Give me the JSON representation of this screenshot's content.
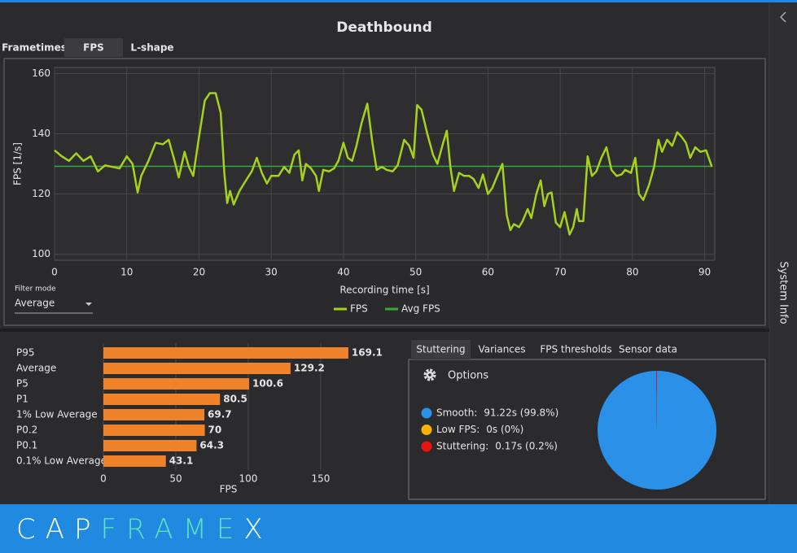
{
  "title": "Deathbound",
  "tabs": [
    "Frametimes",
    "FPS",
    "L-shape"
  ],
  "filter_mode": {
    "label": "Filter mode",
    "value": "Average"
  },
  "side_panel": "System Info",
  "analysis_tabs": [
    "Stuttering",
    "Variances",
    "FPS thresholds",
    "Sensor data"
  ],
  "options": "Options",
  "brand": [
    "CAP",
    "FRAME",
    "X"
  ],
  "chart_data": [
    {
      "type": "line",
      "xlabel": "Recording time [s]",
      "ylabel": "FPS [1/s]",
      "x": [
        0,
        1,
        2,
        3,
        4,
        5,
        6,
        7,
        8,
        9,
        10,
        10.8,
        11.5,
        12,
        13,
        14,
        15,
        15.8,
        16.5,
        17.2,
        18,
        18.6,
        19.2,
        20,
        20.8,
        21.5,
        22.3,
        23,
        23.5,
        23.9,
        24.3,
        24.8,
        25.6,
        26.5,
        27.3,
        28,
        28.7,
        29.4,
        30,
        31,
        31.8,
        32.5,
        33.2,
        33.8,
        34.3,
        34.8,
        35.5,
        36.2,
        36.6,
        37.2,
        38,
        38.7,
        39.3,
        40,
        40.6,
        41.2,
        41.8,
        42.5,
        43.3,
        44,
        44.6,
        45.3,
        46,
        46.8,
        47.5,
        48.4,
        49.1,
        49.7,
        50.2,
        50.8,
        51.6,
        52.4,
        53,
        53.8,
        54.3,
        54.8,
        55.3,
        56,
        56.7,
        57.4,
        58,
        58.7,
        59.3,
        60,
        60.6,
        61.2,
        62,
        62.6,
        63.1,
        63.6,
        64.3,
        64.8,
        65.5,
        66,
        66.7,
        67.3,
        67.8,
        68.3,
        68.8,
        69.4,
        70,
        70.6,
        71.3,
        71.8,
        72.3,
        72.6,
        73.2,
        73.8,
        74.4,
        75,
        75.7,
        76.4,
        77.1,
        77.8,
        78.5,
        79,
        79.8,
        80.4,
        80.9,
        81.5,
        82.3,
        83,
        83.6,
        84.1,
        84.8,
        85.5,
        86.2,
        86.8,
        87.4,
        88,
        88.7,
        89.4,
        90.2,
        91
      ],
      "series": [
        {
          "name": "FPS",
          "color": "#a6d11c",
          "values": [
            134.5,
            132.5,
            131,
            133.5,
            131,
            132.5,
            127.5,
            129.5,
            129,
            128.5,
            132.5,
            130,
            120.5,
            126,
            131,
            137,
            136.5,
            138,
            132,
            125.5,
            134,
            129,
            126,
            139,
            151,
            153.5,
            153.5,
            147,
            127,
            117,
            121,
            116.5,
            121,
            124.5,
            127.5,
            132,
            127,
            123.5,
            126,
            126,
            129,
            127,
            133,
            134.5,
            124.5,
            130,
            128.5,
            126,
            121,
            128,
            127.5,
            128.5,
            131,
            137,
            132,
            131,
            136,
            143.5,
            150,
            137,
            128,
            129,
            128,
            127.5,
            129.5,
            138,
            136,
            132,
            149.5,
            148,
            140,
            133,
            130,
            137,
            141,
            129,
            121,
            127,
            126,
            126,
            125,
            122,
            126.5,
            120,
            122,
            125.5,
            130,
            113,
            108,
            110,
            109,
            111,
            115,
            112,
            120,
            124.5,
            116,
            120,
            120.5,
            110.5,
            109,
            114,
            106.5,
            109,
            115,
            111,
            111,
            132.5,
            126,
            127.5,
            132,
            135.5,
            128,
            126,
            126.5,
            128,
            127,
            132,
            120,
            118,
            123,
            129,
            138,
            134,
            138,
            136,
            140.5,
            139,
            137,
            132,
            135.5,
            134,
            134.5,
            129
          ]
        }
      ],
      "avg": {
        "name": "Avg FPS",
        "color": "#3aa83a",
        "value": 129.2
      },
      "xlim": [
        0,
        91.4
      ],
      "ylim": [
        98,
        162
      ],
      "xticks": [
        0,
        10,
        20,
        30,
        40,
        50,
        60,
        70,
        80,
        90
      ],
      "yticks": [
        100,
        120,
        140,
        160
      ],
      "grid": true
    },
    {
      "type": "bar",
      "orientation": "horizontal",
      "categories": [
        "P95",
        "Average",
        "P5",
        "P1",
        "1% Low Average",
        "P0.2",
        "P0.1",
        "0.1% Low Average"
      ],
      "values": [
        169.1,
        129.2,
        100.6,
        80.5,
        69.7,
        70,
        64.3,
        43.1
      ],
      "color": "#f0832a",
      "xlabel": "FPS",
      "xlim": [
        0,
        204
      ],
      "xticks": [
        0,
        50,
        100,
        150
      ],
      "grid": true
    },
    {
      "type": "pie",
      "categories": [
        "Smooth:",
        "Low FPS:",
        "Stuttering:"
      ],
      "values": [
        99.8,
        0,
        0.2
      ],
      "value_labels": [
        "91.22s (99.8%)",
        "0s (0%)",
        "0.17s (0.2%)"
      ],
      "colors": [
        "#2a90e8",
        "#f5b400",
        "#e81414"
      ]
    }
  ]
}
